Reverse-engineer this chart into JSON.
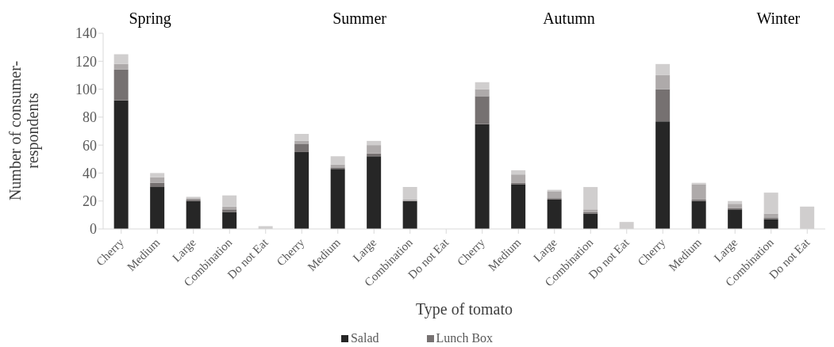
{
  "chart_data": {
    "type": "bar",
    "stacked": true,
    "xlabel": "Type  of tomato",
    "ylabel": "Number of consumer-respondents",
    "annotations": [
      "Spring",
      "Summer",
      "Autumn",
      "Winter"
    ],
    "categories": [
      "Cherry",
      "Medium",
      "Large",
      "Combination",
      "Do not Eat",
      "Cherry",
      "Medium",
      "Large",
      "Combination",
      "Do not Eat",
      "Cherry",
      "Medium",
      "Large",
      "Combination",
      "Do not Eat",
      "Cherry",
      "Medium",
      "Large",
      "Combination",
      "Do not Eat"
    ],
    "series": [
      {
        "name": "Salad",
        "color": "#262626",
        "values": [
          92,
          30,
          20,
          12,
          0,
          55,
          43,
          52,
          20,
          0,
          75,
          32,
          21,
          11,
          0,
          77,
          20,
          14,
          7,
          0
        ]
      },
      {
        "name": "Lunch Box",
        "color": "#767171",
        "values": [
          22,
          3,
          1,
          2,
          0,
          6,
          1,
          2,
          0,
          0,
          20,
          1,
          1,
          1,
          0,
          23,
          1,
          1,
          1,
          0
        ]
      },
      {
        "color": "#aeaaaa",
        "values": [
          4,
          4,
          1,
          2,
          0,
          2,
          2,
          6,
          1,
          0,
          5,
          6,
          5,
          2,
          0,
          10,
          11,
          3,
          3,
          0
        ]
      },
      {
        "color": "#d0cece",
        "values": [
          7,
          3,
          1,
          8,
          2,
          5,
          6,
          3,
          9,
          0,
          5,
          3,
          1,
          16,
          5,
          8,
          1,
          2,
          15,
          16
        ]
      }
    ],
    "ylim": [
      0,
      140
    ],
    "yticks": [
      0,
      20,
      40,
      60,
      80,
      100,
      120,
      140
    ],
    "grid": false,
    "legend": "bottom"
  }
}
